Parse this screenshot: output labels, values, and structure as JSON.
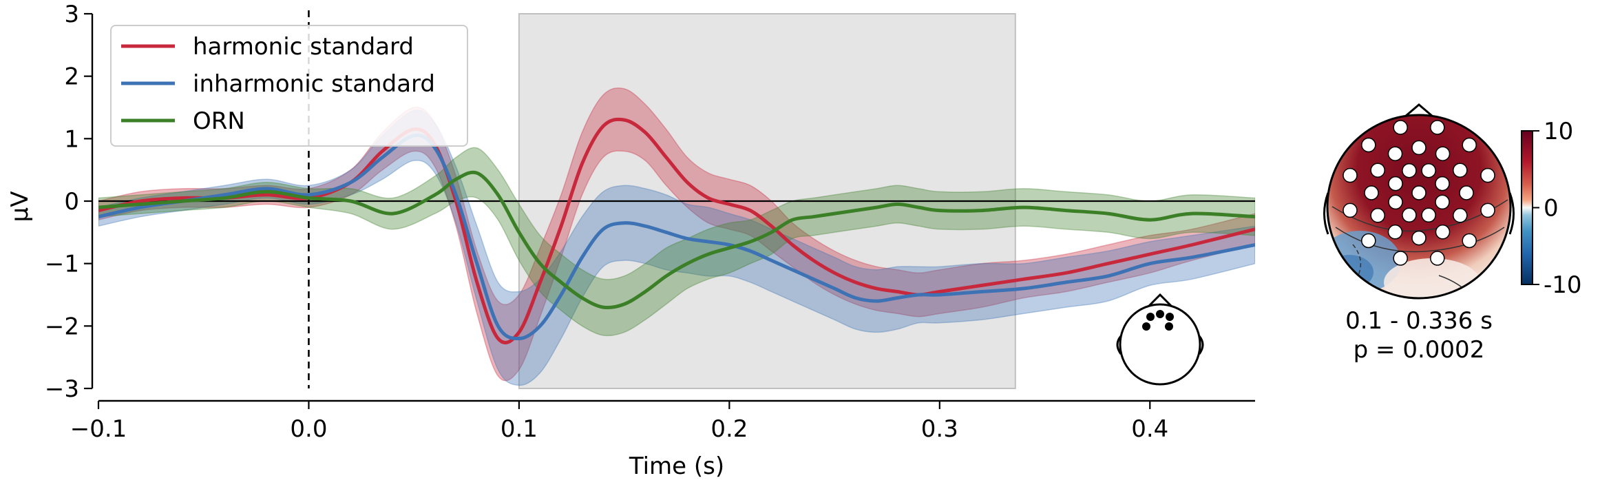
{
  "chart_data": [
    {
      "type": "line",
      "title": "",
      "xlabel": "Time (s)",
      "ylabel": "µV",
      "xlim": [
        -0.1,
        0.45
      ],
      "ylim": [
        -3,
        3
      ],
      "x_ticks": [
        -0.1,
        0.0,
        0.1,
        0.2,
        0.3,
        0.4
      ],
      "x_tick_labels": [
        "−0.1",
        "0.0",
        "0.1",
        "0.2",
        "0.3",
        "0.4"
      ],
      "y_ticks": [
        3,
        2,
        1,
        0,
        -1,
        -2,
        -3
      ],
      "y_tick_labels": [
        "3",
        "2",
        "1",
        "0",
        "−1",
        "−2",
        "−3"
      ],
      "legend_position": "top-left",
      "grid": false,
      "highlight_window": [
        0.1,
        0.336
      ],
      "zero_hline": 0,
      "stimulus_vline": 0.0,
      "series": [
        {
          "name": "harmonic standard",
          "color": "#c8283c",
          "x": [
            -0.1,
            -0.08,
            -0.06,
            -0.04,
            -0.02,
            0.0,
            0.02,
            0.035,
            0.05,
            0.06,
            0.07,
            0.08,
            0.09,
            0.1,
            0.11,
            0.12,
            0.13,
            0.14,
            0.15,
            0.16,
            0.17,
            0.18,
            0.19,
            0.2,
            0.21,
            0.22,
            0.23,
            0.24,
            0.25,
            0.26,
            0.27,
            0.28,
            0.29,
            0.3,
            0.32,
            0.34,
            0.36,
            0.38,
            0.4,
            0.42,
            0.45
          ],
          "y": [
            -0.15,
            0.0,
            0.05,
            0.05,
            0.1,
            0.05,
            0.3,
            0.8,
            1.15,
            0.9,
            0.0,
            -1.3,
            -2.2,
            -2.1,
            -1.3,
            -0.4,
            0.6,
            1.2,
            1.3,
            1.1,
            0.7,
            0.3,
            0.05,
            -0.05,
            -0.15,
            -0.4,
            -0.7,
            -0.95,
            -1.15,
            -1.3,
            -1.4,
            -1.45,
            -1.5,
            -1.45,
            -1.35,
            -1.25,
            -1.15,
            -1.0,
            -0.85,
            -0.7,
            -0.45
          ],
          "ci_halfwidth": [
            0.15,
            0.15,
            0.15,
            0.15,
            0.15,
            0.15,
            0.2,
            0.3,
            0.35,
            0.35,
            0.4,
            0.5,
            0.6,
            0.6,
            0.55,
            0.5,
            0.5,
            0.5,
            0.5,
            0.45,
            0.45,
            0.4,
            0.4,
            0.4,
            0.4,
            0.4,
            0.35,
            0.35,
            0.35,
            0.35,
            0.35,
            0.35,
            0.35,
            0.35,
            0.35,
            0.3,
            0.3,
            0.3,
            0.3,
            0.25,
            0.25
          ]
        },
        {
          "name": "inharmonic standard",
          "color": "#3d72b4",
          "x": [
            -0.1,
            -0.08,
            -0.06,
            -0.04,
            -0.02,
            0.0,
            0.02,
            0.035,
            0.05,
            0.06,
            0.07,
            0.08,
            0.09,
            0.1,
            0.11,
            0.12,
            0.13,
            0.14,
            0.15,
            0.16,
            0.17,
            0.18,
            0.19,
            0.2,
            0.21,
            0.22,
            0.23,
            0.24,
            0.25,
            0.26,
            0.27,
            0.28,
            0.29,
            0.3,
            0.32,
            0.34,
            0.36,
            0.38,
            0.4,
            0.42,
            0.45
          ],
          "y": [
            -0.25,
            -0.1,
            0.0,
            0.1,
            0.2,
            0.1,
            0.3,
            0.7,
            1.05,
            0.85,
            0.1,
            -1.0,
            -2.0,
            -2.2,
            -2.0,
            -1.5,
            -0.9,
            -0.45,
            -0.35,
            -0.4,
            -0.5,
            -0.6,
            -0.65,
            -0.7,
            -0.8,
            -0.95,
            -1.1,
            -1.25,
            -1.4,
            -1.55,
            -1.6,
            -1.55,
            -1.5,
            -1.5,
            -1.45,
            -1.4,
            -1.3,
            -1.2,
            -1.0,
            -0.9,
            -0.7
          ],
          "ci_halfwidth": [
            0.15,
            0.15,
            0.15,
            0.15,
            0.15,
            0.15,
            0.2,
            0.35,
            0.4,
            0.4,
            0.45,
            0.6,
            0.7,
            0.75,
            0.75,
            0.7,
            0.65,
            0.6,
            0.6,
            0.6,
            0.6,
            0.55,
            0.55,
            0.5,
            0.5,
            0.5,
            0.5,
            0.5,
            0.5,
            0.5,
            0.5,
            0.5,
            0.45,
            0.45,
            0.45,
            0.4,
            0.4,
            0.4,
            0.35,
            0.35,
            0.3
          ]
        },
        {
          "name": "ORN",
          "color": "#3b7f27",
          "x": [
            -0.1,
            -0.08,
            -0.06,
            -0.04,
            -0.02,
            0.0,
            0.02,
            0.04,
            0.06,
            0.07,
            0.08,
            0.09,
            0.1,
            0.11,
            0.12,
            0.13,
            0.14,
            0.15,
            0.16,
            0.17,
            0.18,
            0.19,
            0.2,
            0.21,
            0.22,
            0.23,
            0.24,
            0.25,
            0.26,
            0.27,
            0.28,
            0.29,
            0.3,
            0.32,
            0.34,
            0.36,
            0.38,
            0.4,
            0.42,
            0.45
          ],
          "y": [
            -0.1,
            -0.05,
            0.0,
            0.05,
            0.15,
            0.05,
            0.0,
            -0.2,
            0.1,
            0.35,
            0.45,
            0.1,
            -0.5,
            -1.0,
            -1.3,
            -1.55,
            -1.7,
            -1.65,
            -1.45,
            -1.2,
            -1.0,
            -0.85,
            -0.75,
            -0.65,
            -0.5,
            -0.3,
            -0.25,
            -0.2,
            -0.15,
            -0.1,
            -0.05,
            -0.1,
            -0.15,
            -0.15,
            -0.1,
            -0.15,
            -0.2,
            -0.3,
            -0.2,
            -0.25
          ],
          "ci_halfwidth": [
            0.15,
            0.15,
            0.15,
            0.15,
            0.15,
            0.15,
            0.2,
            0.25,
            0.3,
            0.35,
            0.4,
            0.4,
            0.45,
            0.45,
            0.45,
            0.45,
            0.45,
            0.45,
            0.45,
            0.45,
            0.4,
            0.4,
            0.4,
            0.35,
            0.35,
            0.3,
            0.3,
            0.3,
            0.3,
            0.3,
            0.3,
            0.3,
            0.3,
            0.3,
            0.3,
            0.3,
            0.3,
            0.3,
            0.3,
            0.3
          ]
        }
      ]
    },
    {
      "type": "heatmap",
      "subtype": "topomap",
      "title": "",
      "time_window_label": "0.1 - 0.336 s",
      "p_value_label": "p = 0.0002",
      "colorbar_ticks": [
        10,
        0,
        -10
      ],
      "colorbar_tick_labels": [
        "10",
        "0",
        "-10"
      ],
      "clim": [
        -10,
        10
      ],
      "colormap": "RdBu_r",
      "significant_sensors": 33
    }
  ],
  "sensor_inset": {
    "name": "sensor layout head",
    "sensors_shown": 5
  }
}
